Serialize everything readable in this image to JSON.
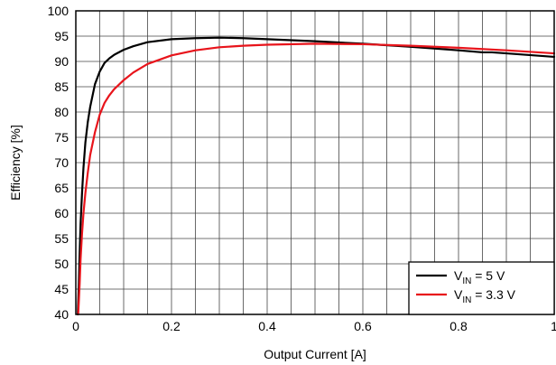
{
  "chart_data": {
    "type": "line",
    "xlabel": "Output Current [A]",
    "ylabel": "Efficiency [%]",
    "xlim": [
      0,
      1
    ],
    "ylim": [
      40,
      100
    ],
    "x_ticks": [
      0,
      0.2,
      0.4,
      0.6,
      0.8,
      1
    ],
    "x_tick_labels": [
      "0",
      "0.2",
      "0.4",
      "0.6",
      "0.8",
      "1"
    ],
    "y_ticks": [
      40,
      45,
      50,
      55,
      60,
      65,
      70,
      75,
      80,
      85,
      90,
      95,
      100
    ],
    "y_tick_labels": [
      "40",
      "45",
      "50",
      "55",
      "60",
      "65",
      "70",
      "75",
      "80",
      "85",
      "90",
      "95",
      "100"
    ],
    "grid": true,
    "legend_position": "bottom-right",
    "series": [
      {
        "name_main": "V",
        "name_sub": "IN",
        "name_rest": " = 5 V",
        "color": "#000000",
        "x": [
          0.004,
          0.006,
          0.008,
          0.01,
          0.013,
          0.016,
          0.02,
          0.025,
          0.03,
          0.04,
          0.05,
          0.06,
          0.07,
          0.08,
          0.1,
          0.12,
          0.15,
          0.2,
          0.25,
          0.3,
          0.35,
          0.4,
          0.5,
          0.6,
          0.7,
          0.8,
          0.85,
          0.87,
          0.9,
          1.0
        ],
        "y": [
          40,
          45,
          52,
          58,
          64,
          69,
          74,
          78,
          81,
          85.5,
          88,
          89.7,
          90.6,
          91.3,
          92.3,
          93,
          93.8,
          94.4,
          94.6,
          94.7,
          94.6,
          94.4,
          94.0,
          93.5,
          92.9,
          92.2,
          91.8,
          91.8,
          91.6,
          90.9
        ]
      },
      {
        "name_main": "V",
        "name_sub": "IN",
        "name_rest": " = 3.3 V",
        "color": "#e8141b",
        "x": [
          0.005,
          0.008,
          0.01,
          0.013,
          0.016,
          0.02,
          0.025,
          0.03,
          0.04,
          0.05,
          0.06,
          0.07,
          0.08,
          0.1,
          0.12,
          0.15,
          0.2,
          0.25,
          0.3,
          0.35,
          0.4,
          0.5,
          0.6,
          0.7,
          0.8,
          0.9,
          1.0
        ],
        "y": [
          40,
          46,
          51,
          56,
          60,
          64,
          68,
          71.5,
          76,
          79.5,
          81.8,
          83.3,
          84.5,
          86.3,
          87.8,
          89.5,
          91.2,
          92.2,
          92.8,
          93.1,
          93.3,
          93.5,
          93.4,
          93.1,
          92.7,
          92.2,
          91.6
        ]
      }
    ]
  }
}
